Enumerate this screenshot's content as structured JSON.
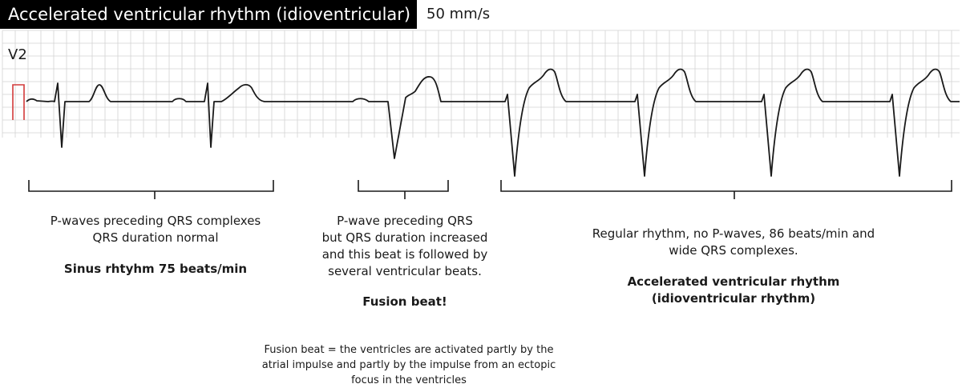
{
  "header": {
    "title": "Accelerated ventricular rhythm (idioventricular)",
    "speed": "50 mm/s"
  },
  "strip": {
    "lead": "V2",
    "colors": {
      "grid": "#d2d2d2",
      "trace": "#1a1a1a",
      "calibration": "#d23a3a",
      "bracket": "#1a1a1a"
    }
  },
  "annotations": {
    "sinus": {
      "line1": "P-waves preceding QRS complexes",
      "line2": "QRS duration normal",
      "conclusion": "Sinus rhtyhm 75 beats/min"
    },
    "fusion": {
      "line1": "P-wave preceding QRS",
      "line2": "but QRS duration increased",
      "line3": "and this beat is followed by",
      "line4": "several ventricular beats.",
      "conclusion": "Fusion beat!"
    },
    "ventricular": {
      "line1": "Regular rhythm, no P-waves, 86 beats/min and",
      "line2": "wide QRS complexes.",
      "conclusion_line1": "Accelerated ventricular rhythm",
      "conclusion_line2": "(idioventricular rhythm)"
    },
    "footnote": {
      "line1": "Fusion beat = the ventricles are activated partly by the",
      "line2": "atrial impulse and partly by the impulse from an ectopic",
      "line3": "focus in the ventricles"
    }
  }
}
